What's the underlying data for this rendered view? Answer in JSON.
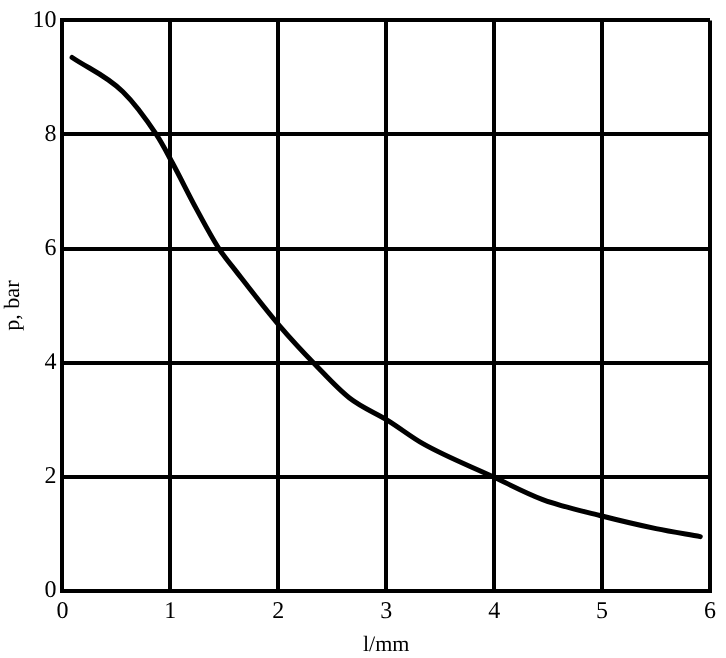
{
  "chart_data": {
    "type": "line",
    "xlabel": "l/mm",
    "ylabel": "p, bar",
    "x": [
      0.09,
      0.56,
      0.87,
      1.02,
      1.24,
      1.45,
      1.61,
      2.01,
      2.35,
      2.66,
      3.02,
      3.34,
      3.99,
      4.45,
      4.98,
      5.5,
      5.91
    ],
    "series": [
      {
        "color": "#000000",
        "values": [
          9.35,
          8.75,
          8.0,
          7.5,
          6.7,
          6.0,
          5.6,
          4.65,
          3.95,
          3.38,
          2.98,
          2.58,
          2.0,
          1.6,
          1.32,
          1.09,
          0.95
        ]
      }
    ],
    "xlim": [
      0,
      6
    ],
    "xticks": [
      0,
      1,
      2,
      3,
      4,
      5,
      6
    ],
    "ylim": [
      0,
      10
    ],
    "yticks": [
      0,
      2,
      4,
      6,
      8,
      10
    ],
    "grid": true,
    "legend": false,
    "marker": "none",
    "line_style": "solid"
  }
}
